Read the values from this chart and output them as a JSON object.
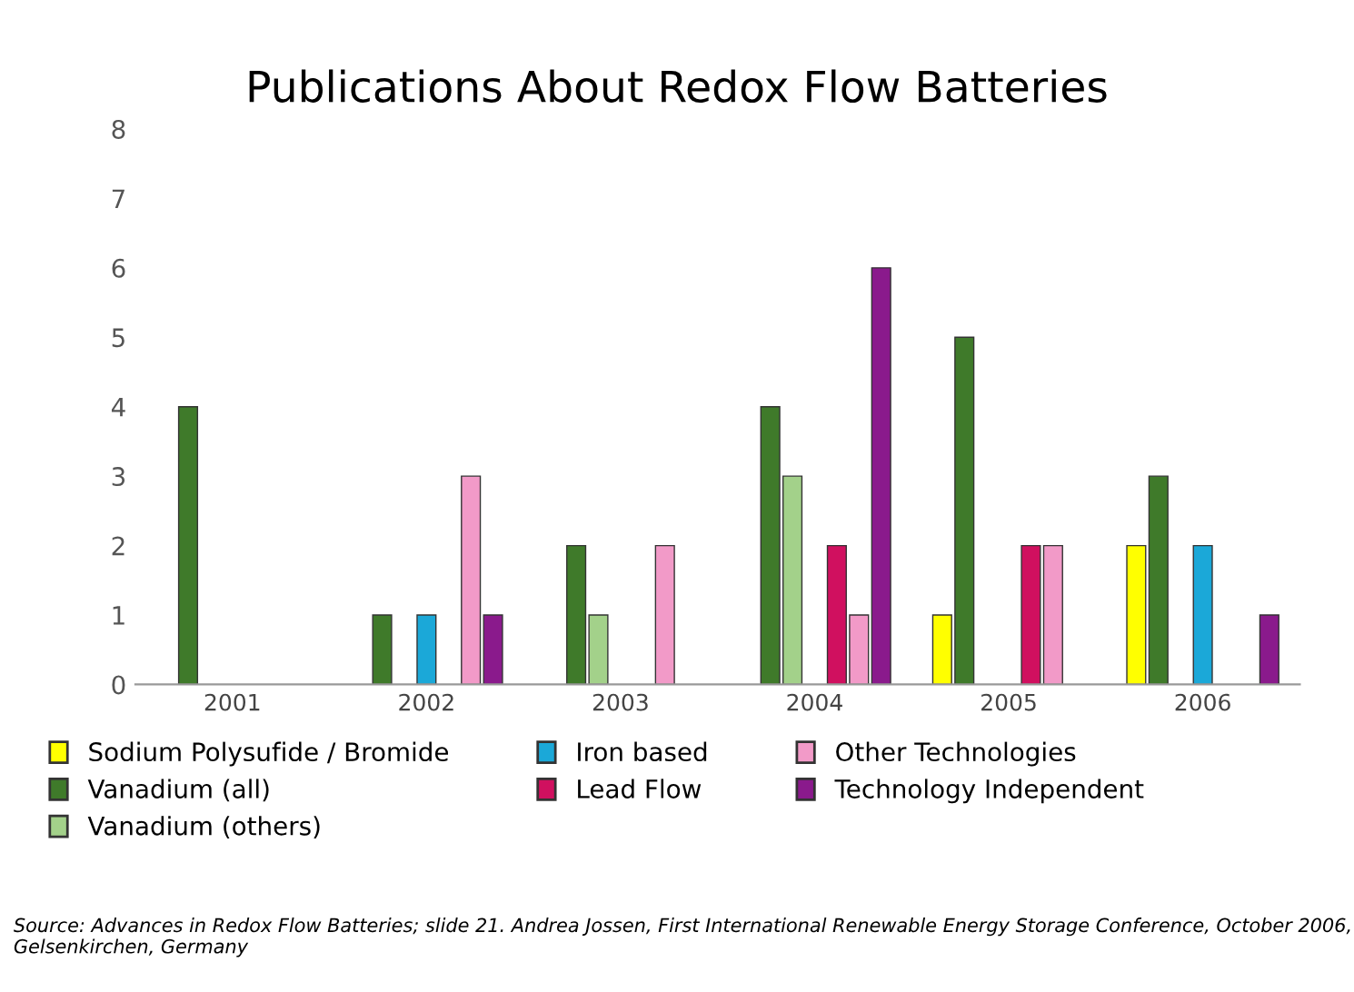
{
  "chart_data": {
    "type": "bar",
    "title": "Publications About Redox Flow Batteries",
    "categories": [
      "2001",
      "2002",
      "2003",
      "2004",
      "2005",
      "2006"
    ],
    "series": [
      {
        "name": "Sodium Polysufide / Bromide",
        "color": "#ffff00",
        "values": [
          null,
          null,
          null,
          null,
          1,
          2
        ]
      },
      {
        "name": "Vanadium (all)",
        "color": "#3f7a2a",
        "values": [
          4,
          1,
          2,
          4,
          5,
          3
        ]
      },
      {
        "name": "Vanadium (others)",
        "color": "#a3d18a",
        "values": [
          null,
          null,
          1,
          3,
          null,
          null
        ]
      },
      {
        "name": "Iron based",
        "color": "#1ba8d8",
        "values": [
          null,
          1,
          null,
          null,
          null,
          2
        ]
      },
      {
        "name": "Lead Flow",
        "color": "#d0105f",
        "values": [
          null,
          null,
          null,
          2,
          2,
          null
        ]
      },
      {
        "name": "Other Technologies",
        "color": "#f29ac8",
        "values": [
          null,
          3,
          2,
          1,
          2,
          null
        ]
      },
      {
        "name": "Technology Independent",
        "color": "#8a1a8c",
        "values": [
          null,
          1,
          null,
          6,
          null,
          1
        ]
      }
    ],
    "ylim": [
      0,
      8
    ],
    "yticks": [
      0,
      1,
      2,
      3,
      4,
      5,
      6,
      7,
      8
    ],
    "grid": false,
    "legend": "bottom",
    "annotations": [
      "Source: Advances in Redox Flow Batteries; slide 21. Andrea Jossen, First International Renewable Energy Storage Conference, October 2006, Gelsenkirchen, Germany"
    ]
  }
}
